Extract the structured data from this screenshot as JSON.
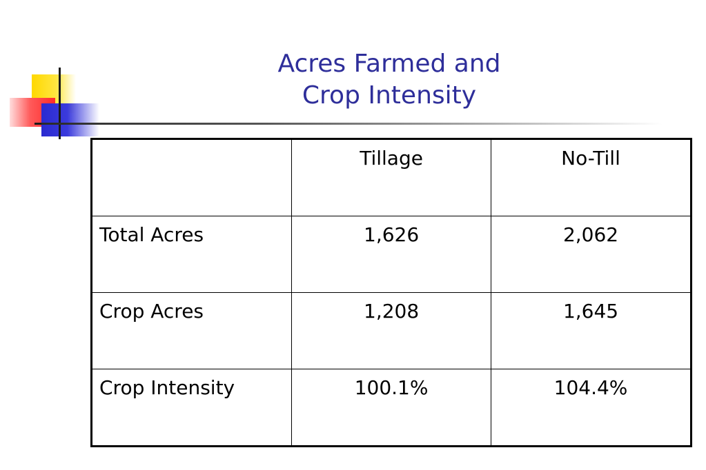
{
  "slide": {
    "title_lines": [
      "Acres Farmed and",
      "Crop Intensity"
    ]
  },
  "table": {
    "header": [
      "",
      "Tillage",
      "No-Till"
    ],
    "rows": [
      {
        "label": "Total Acres",
        "tillage": "1,626",
        "notill": "2,062"
      },
      {
        "label": "Crop Acres",
        "tillage": "1,208",
        "notill": "1,645"
      },
      {
        "label": "Crop Intensity",
        "tillage": "100.1%",
        "notill": "104.4%"
      }
    ]
  },
  "colors": {
    "title": "#2e2e9a",
    "deco_yellow": "#ffd800",
    "deco_red": "#ff2a2a",
    "deco_blue": "#2a2ad0"
  }
}
